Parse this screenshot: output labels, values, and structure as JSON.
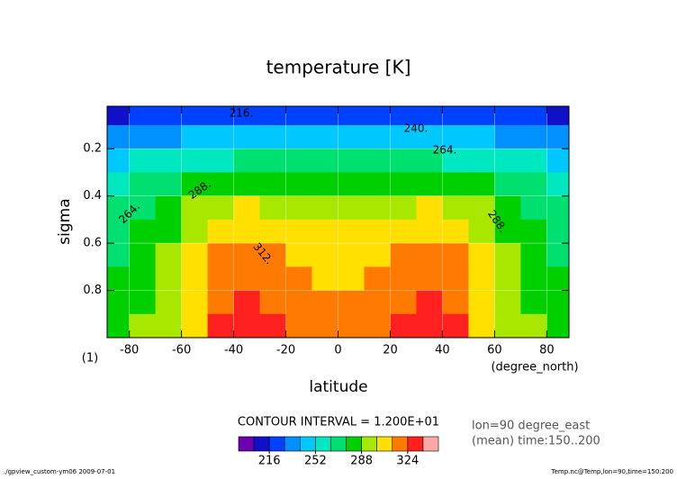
{
  "chart_data": {
    "type": "contour",
    "title": "temperature [K]",
    "xlabel": "latitude",
    "ylabel": "sigma",
    "xunit": "(degree_north)",
    "yunit": "(1)",
    "xlim": [
      -88.5,
      88.5
    ],
    "ylim": [
      0.02,
      1.0
    ],
    "y_inverted": true,
    "xticks": [
      -80,
      -60,
      -40,
      -20,
      0,
      20,
      40,
      60,
      80
    ],
    "yticks": [
      0.2,
      0.4,
      0.6,
      0.8
    ],
    "grid": true,
    "x": [
      -85,
      -75,
      -65,
      -55,
      -45,
      -35,
      -25,
      -15,
      -5,
      5,
      15,
      25,
      35,
      45,
      55,
      65,
      75,
      85
    ],
    "y": [
      0.05,
      0.15,
      0.25,
      0.35,
      0.45,
      0.55,
      0.65,
      0.75,
      0.85,
      0.95
    ],
    "z": [
      [
        212,
        217,
        221,
        223,
        225,
        225,
        225,
        226,
        226,
        226,
        226,
        225,
        225,
        225,
        223,
        221,
        217,
        212
      ],
      [
        236,
        238,
        239,
        242,
        244,
        244,
        245,
        245,
        246,
        246,
        245,
        245,
        244,
        244,
        242,
        239,
        238,
        236
      ],
      [
        250,
        254,
        257,
        261,
        263,
        264,
        265,
        265,
        266,
        266,
        265,
        265,
        264,
        263,
        261,
        257,
        254,
        250
      ],
      [
        260,
        266,
        271,
        277,
        281,
        282,
        283,
        285,
        286,
        286,
        285,
        283,
        282,
        281,
        277,
        271,
        266,
        260
      ],
      [
        268,
        275,
        281,
        291,
        298,
        300,
        298,
        296,
        294,
        294,
        296,
        298,
        300,
        298,
        291,
        281,
        275,
        268
      ],
      [
        272,
        279,
        285,
        296,
        304,
        306,
        304,
        302,
        300,
        300,
        302,
        304,
        306,
        304,
        296,
        285,
        279,
        272
      ],
      [
        275,
        282,
        289,
        302,
        313,
        315,
        312,
        309,
        306,
        306,
        309,
        312,
        315,
        313,
        302,
        289,
        282,
        275
      ],
      [
        278,
        285,
        291,
        307,
        319,
        322,
        318,
        314,
        310,
        310,
        314,
        318,
        322,
        319,
        307,
        291,
        285,
        278
      ],
      [
        280,
        287,
        293,
        310,
        323,
        326,
        322,
        318,
        314,
        314,
        318,
        322,
        326,
        323,
        310,
        293,
        287,
        280
      ],
      [
        282,
        288,
        293,
        311,
        325,
        328,
        325,
        321,
        318,
        318,
        321,
        325,
        328,
        325,
        311,
        293,
        288,
        282
      ]
    ],
    "levels": [
      192,
      204,
      216,
      228,
      240,
      252,
      264,
      276,
      288,
      300,
      312,
      324,
      336,
      348
    ],
    "colors": [
      "#6a00b0",
      "#1010c8",
      "#0040ff",
      "#0090ff",
      "#00c8ff",
      "#00e8c0",
      "#00e070",
      "#00d000",
      "#a8e800",
      "#ffe000",
      "#ff7a00",
      "#ff2020",
      "#ffa8a8"
    ],
    "colorbar_ticks": [
      216,
      252,
      288,
      324
    ],
    "contour_labels": [
      "216.",
      "240.",
      "264.",
      "264.",
      "288.",
      "288.",
      "312."
    ],
    "contour_interval": "CONTOUR INTERVAL = 1.200E+01",
    "info": [
      "lon=90 degree_east",
      "(mean) time:150..200"
    ],
    "footer_left": "./gpview_custom-ym06  2009-07-01",
    "footer_right": "Temp.nc@Temp,lon=90,time=150:200"
  }
}
